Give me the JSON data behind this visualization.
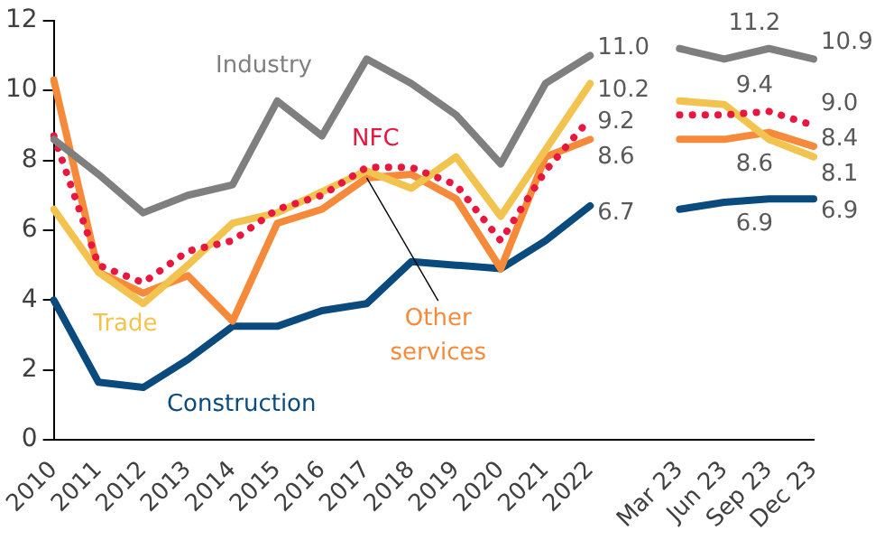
{
  "chart_data": {
    "type": "line",
    "categories": [
      "2010",
      "2011",
      "2012",
      "2013",
      "2014",
      "2015",
      "2016",
      "2017",
      "2018",
      "2019",
      "2020",
      "2021",
      "2022",
      null,
      "Mar 23",
      "Jun 23",
      "Sep 23",
      "Dec 23"
    ],
    "series": [
      {
        "name": "Industry",
        "color": "#7f7f7f",
        "values": [
          8.6,
          7.6,
          6.5,
          7.0,
          7.3,
          9.7,
          8.7,
          10.9,
          10.2,
          9.3,
          7.9,
          10.2,
          11.0,
          null,
          11.2,
          10.9,
          11.2,
          10.9
        ],
        "value_labels": [
          null,
          null,
          null,
          null,
          null,
          null,
          null,
          null,
          null,
          null,
          null,
          null,
          "11.0",
          null,
          null,
          null,
          "11.2",
          "10.9"
        ]
      },
      {
        "name": "NFC",
        "color": "#e8173f",
        "line_style": "dotted",
        "values": [
          8.7,
          5.0,
          4.5,
          5.4,
          5.7,
          6.6,
          7.0,
          7.8,
          7.8,
          7.3,
          5.7,
          7.7,
          9.2,
          null,
          9.3,
          9.3,
          9.4,
          9.0
        ],
        "value_labels": [
          null,
          null,
          null,
          null,
          null,
          null,
          null,
          null,
          null,
          null,
          null,
          null,
          "9.2",
          null,
          null,
          null,
          "9.4",
          "9.0"
        ]
      },
      {
        "name": "Trade",
        "color": "#f2c44f",
        "values": [
          6.6,
          4.8,
          3.9,
          5.0,
          6.2,
          6.5,
          7.1,
          7.7,
          7.2,
          8.1,
          6.4,
          8.3,
          10.2,
          null,
          9.7,
          9.6,
          8.6,
          8.1
        ],
        "value_labels": [
          null,
          null,
          null,
          null,
          null,
          null,
          null,
          null,
          null,
          null,
          null,
          null,
          "10.2",
          null,
          null,
          null,
          "8.6",
          "8.1"
        ]
      },
      {
        "name": "Other services",
        "color": "#f58a3a",
        "values": [
          10.3,
          4.8,
          4.2,
          4.7,
          3.4,
          6.2,
          6.6,
          7.5,
          7.6,
          6.9,
          4.9,
          8.1,
          8.6,
          null,
          8.6,
          8.6,
          8.8,
          8.4
        ],
        "value_labels": [
          null,
          null,
          null,
          null,
          null,
          null,
          null,
          null,
          null,
          null,
          null,
          null,
          "8.6",
          null,
          null,
          null,
          null,
          "8.4"
        ]
      },
      {
        "name": "Construction",
        "color": "#0b4a7d",
        "values": [
          4.0,
          1.65,
          1.5,
          2.3,
          3.25,
          3.25,
          3.7,
          3.9,
          5.1,
          5.0,
          4.9,
          5.7,
          6.7,
          null,
          6.6,
          6.8,
          6.9,
          6.9
        ],
        "value_labels": [
          null,
          null,
          null,
          null,
          null,
          null,
          null,
          null,
          null,
          null,
          null,
          null,
          "6.7",
          null,
          null,
          null,
          "6.9",
          "6.9"
        ]
      }
    ],
    "ylim": [
      0,
      12
    ],
    "yticks": [
      0,
      2,
      4,
      6,
      8,
      10,
      12
    ],
    "grid": false,
    "legend": false,
    "marker": "none"
  }
}
